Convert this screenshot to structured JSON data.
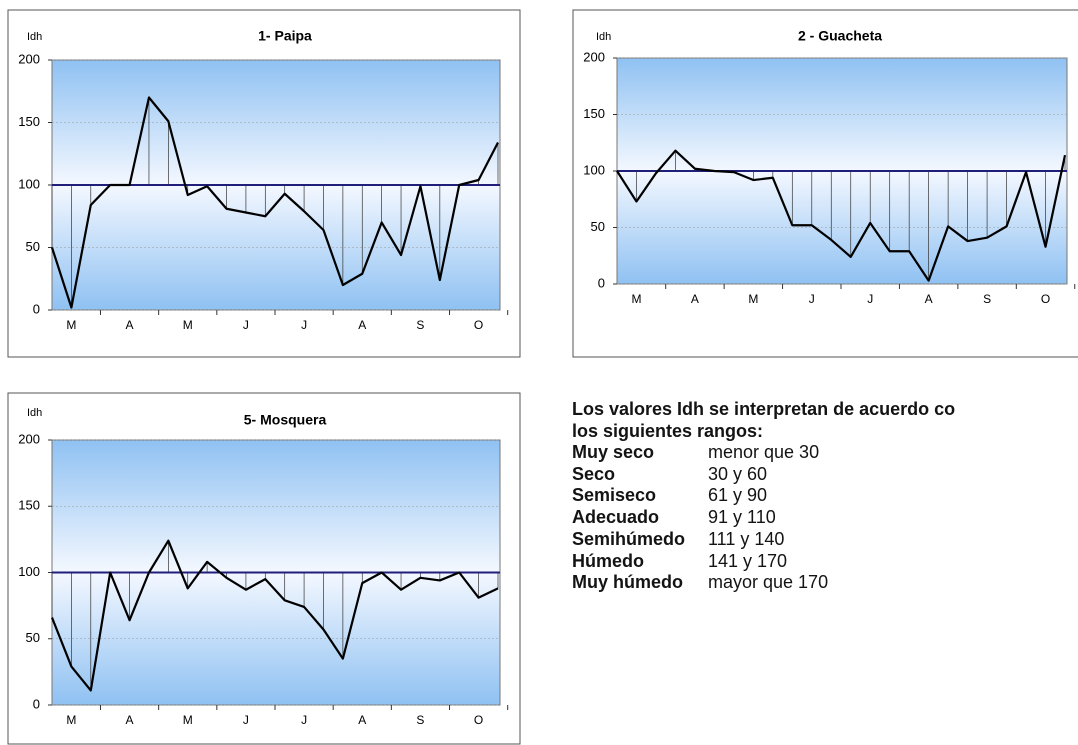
{
  "chart_data": [
    {
      "type": "line",
      "title": "1- Paipa",
      "ylabel": "Idh",
      "categories": [
        null,
        "M",
        null,
        null,
        "A",
        null,
        null,
        "M",
        null,
        null,
        "J",
        null,
        null,
        "J",
        null,
        null,
        "A",
        null,
        null,
        "S",
        null,
        null,
        "O",
        null
      ],
      "values": [
        50,
        2,
        84,
        100,
        100,
        170,
        151,
        92,
        99,
        81,
        78,
        75,
        93,
        79,
        64,
        20,
        29,
        70,
        44,
        99,
        24,
        100,
        104,
        134
      ],
      "color": "#000000",
      "reference": 100,
      "reference_color": "#1f1f7a",
      "ylim": [
        0,
        200
      ],
      "yticks": [
        0,
        50,
        100,
        150,
        200
      ],
      "grid": true
    },
    {
      "type": "line",
      "title": "2 - Guacheta",
      "ylabel": "Idh",
      "categories": [
        null,
        "M",
        null,
        null,
        "A",
        null,
        null,
        "M",
        null,
        null,
        "J",
        null,
        null,
        "J",
        null,
        null,
        "A",
        null,
        null,
        "S",
        null,
        null,
        "O",
        null
      ],
      "values": [
        100,
        73,
        98,
        118,
        102,
        100,
        99,
        92,
        94,
        52,
        52,
        39,
        24,
        54,
        29,
        29,
        3,
        51,
        38,
        41,
        51,
        99,
        33,
        114
      ],
      "color": "#000000",
      "reference": 100,
      "reference_color": "#1f1f7a",
      "ylim": [
        0,
        200
      ],
      "yticks": [
        0,
        50,
        100,
        150,
        200
      ],
      "grid": true
    },
    {
      "type": "line",
      "title": "5- Mosquera",
      "ylabel": "Idh",
      "categories": [
        null,
        "M",
        null,
        null,
        "A",
        null,
        null,
        "M",
        null,
        null,
        "J",
        null,
        null,
        "J",
        null,
        null,
        "A",
        null,
        null,
        "S",
        null,
        null,
        "O",
        null
      ],
      "values": [
        66,
        29,
        11,
        100,
        64,
        100,
        124,
        88,
        108,
        96,
        87,
        95,
        79,
        74,
        57,
        35,
        92,
        100,
        87,
        96,
        94,
        100,
        81,
        88
      ],
      "color": "#000000",
      "reference": 100,
      "reference_color": "#1f1f7a",
      "ylim": [
        0,
        200
      ],
      "yticks": [
        0,
        50,
        100,
        150,
        200
      ],
      "grid": true
    }
  ],
  "ranges": {
    "heading": [
      "Los valores Idh se interpretan de acuerdo co",
      "los siguientes rangos:"
    ],
    "rows": [
      [
        "Muy seco",
        "menor que 30"
      ],
      [
        "Seco",
        "30 y 60"
      ],
      [
        "Semiseco",
        "61 y 90"
      ],
      [
        "Adecuado",
        "91 y 110"
      ],
      [
        "Semihúmedo",
        "111 y 140"
      ],
      [
        "Húmedo",
        "141 y 170"
      ],
      [
        "Muy húmedo",
        "mayor que 170"
      ]
    ]
  }
}
